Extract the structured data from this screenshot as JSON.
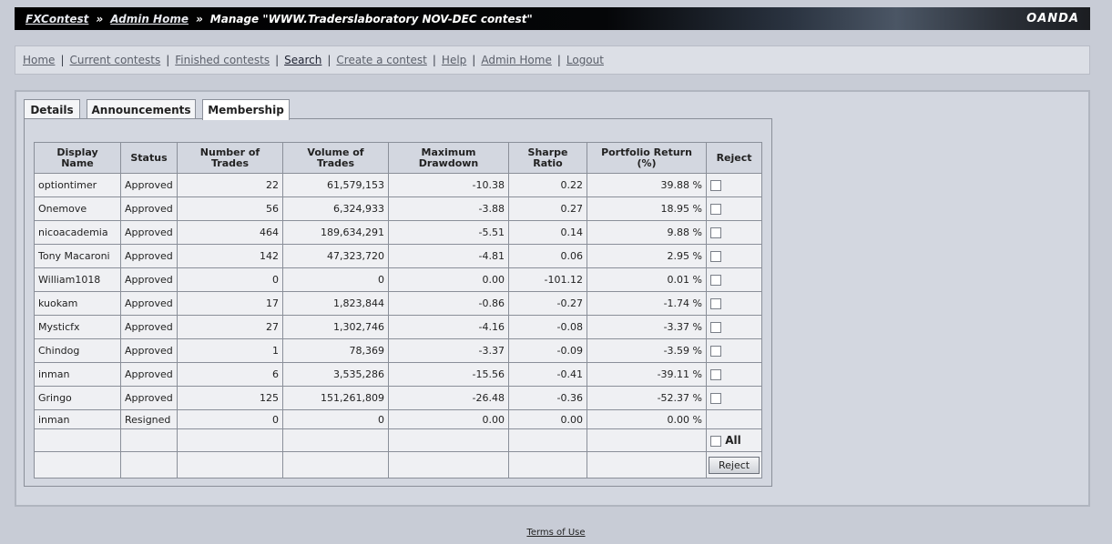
{
  "header": {
    "link1": "FXContest",
    "link2": "Admin Home",
    "sep": "»",
    "title": "Manage \"WWW.Traderslaboratory NOV-DEC contest\"",
    "logo": "OANDA"
  },
  "nav": {
    "items": [
      "Home",
      "Current contests",
      "Finished contests",
      "Search",
      "Create a contest",
      "Help",
      "Admin Home",
      "Logout"
    ],
    "sep": "|"
  },
  "tabs": [
    "Details",
    "Announcements",
    "Membership"
  ],
  "table": {
    "headers": {
      "name_l1": "Display",
      "name_l2": "Name",
      "status": "Status",
      "trades_l1": "Number of",
      "trades_l2": "Trades",
      "volume_l1": "Volume of",
      "volume_l2": "Trades",
      "drawdown_l1": "Maximum",
      "drawdown_l2": "Drawdown",
      "sharpe_l1": "Sharpe",
      "sharpe_l2": "Ratio",
      "return_l1": "Portfolio Return",
      "return_l2": "(%)",
      "reject": "Reject"
    },
    "rows": [
      {
        "name": "optiontimer",
        "status": "Approved",
        "trades": "22",
        "volume": "61,579,153",
        "drawdown": "-10.38",
        "sharpe": "0.22",
        "ret": "39.88 %"
      },
      {
        "name": "Onemove",
        "status": "Approved",
        "trades": "56",
        "volume": "6,324,933",
        "drawdown": "-3.88",
        "sharpe": "0.27",
        "ret": "18.95 %"
      },
      {
        "name": "nicoacademia",
        "status": "Approved",
        "trades": "464",
        "volume": "189,634,291",
        "drawdown": "-5.51",
        "sharpe": "0.14",
        "ret": "9.88 %"
      },
      {
        "name": "Tony Macaroni",
        "status": "Approved",
        "trades": "142",
        "volume": "47,323,720",
        "drawdown": "-4.81",
        "sharpe": "0.06",
        "ret": "2.95 %"
      },
      {
        "name": "William1018",
        "status": "Approved",
        "trades": "0",
        "volume": "0",
        "drawdown": "0.00",
        "sharpe": "-101.12",
        "ret": "0.01 %"
      },
      {
        "name": "kuokam",
        "status": "Approved",
        "trades": "17",
        "volume": "1,823,844",
        "drawdown": "-0.86",
        "sharpe": "-0.27",
        "ret": "-1.74 %"
      },
      {
        "name": "Mysticfx",
        "status": "Approved",
        "trades": "27",
        "volume": "1,302,746",
        "drawdown": "-4.16",
        "sharpe": "-0.08",
        "ret": "-3.37 %"
      },
      {
        "name": "Chindog",
        "status": "Approved",
        "trades": "1",
        "volume": "78,369",
        "drawdown": "-3.37",
        "sharpe": "-0.09",
        "ret": "-3.59 %"
      },
      {
        "name": "inman",
        "status": "Approved",
        "trades": "6",
        "volume": "3,535,286",
        "drawdown": "-15.56",
        "sharpe": "-0.41",
        "ret": "-39.11 %"
      },
      {
        "name": "Gringo",
        "status": "Approved",
        "trades": "125",
        "volume": "151,261,809",
        "drawdown": "-26.48",
        "sharpe": "-0.36",
        "ret": "-52.37 %"
      },
      {
        "name": "inman",
        "status": "Resigned",
        "trades": "0",
        "volume": "0",
        "drawdown": "0.00",
        "sharpe": "0.00",
        "ret": "0.00 %"
      }
    ],
    "all_label": "All",
    "reject_button": "Reject"
  },
  "footer": {
    "terms": "Terms of Use"
  }
}
